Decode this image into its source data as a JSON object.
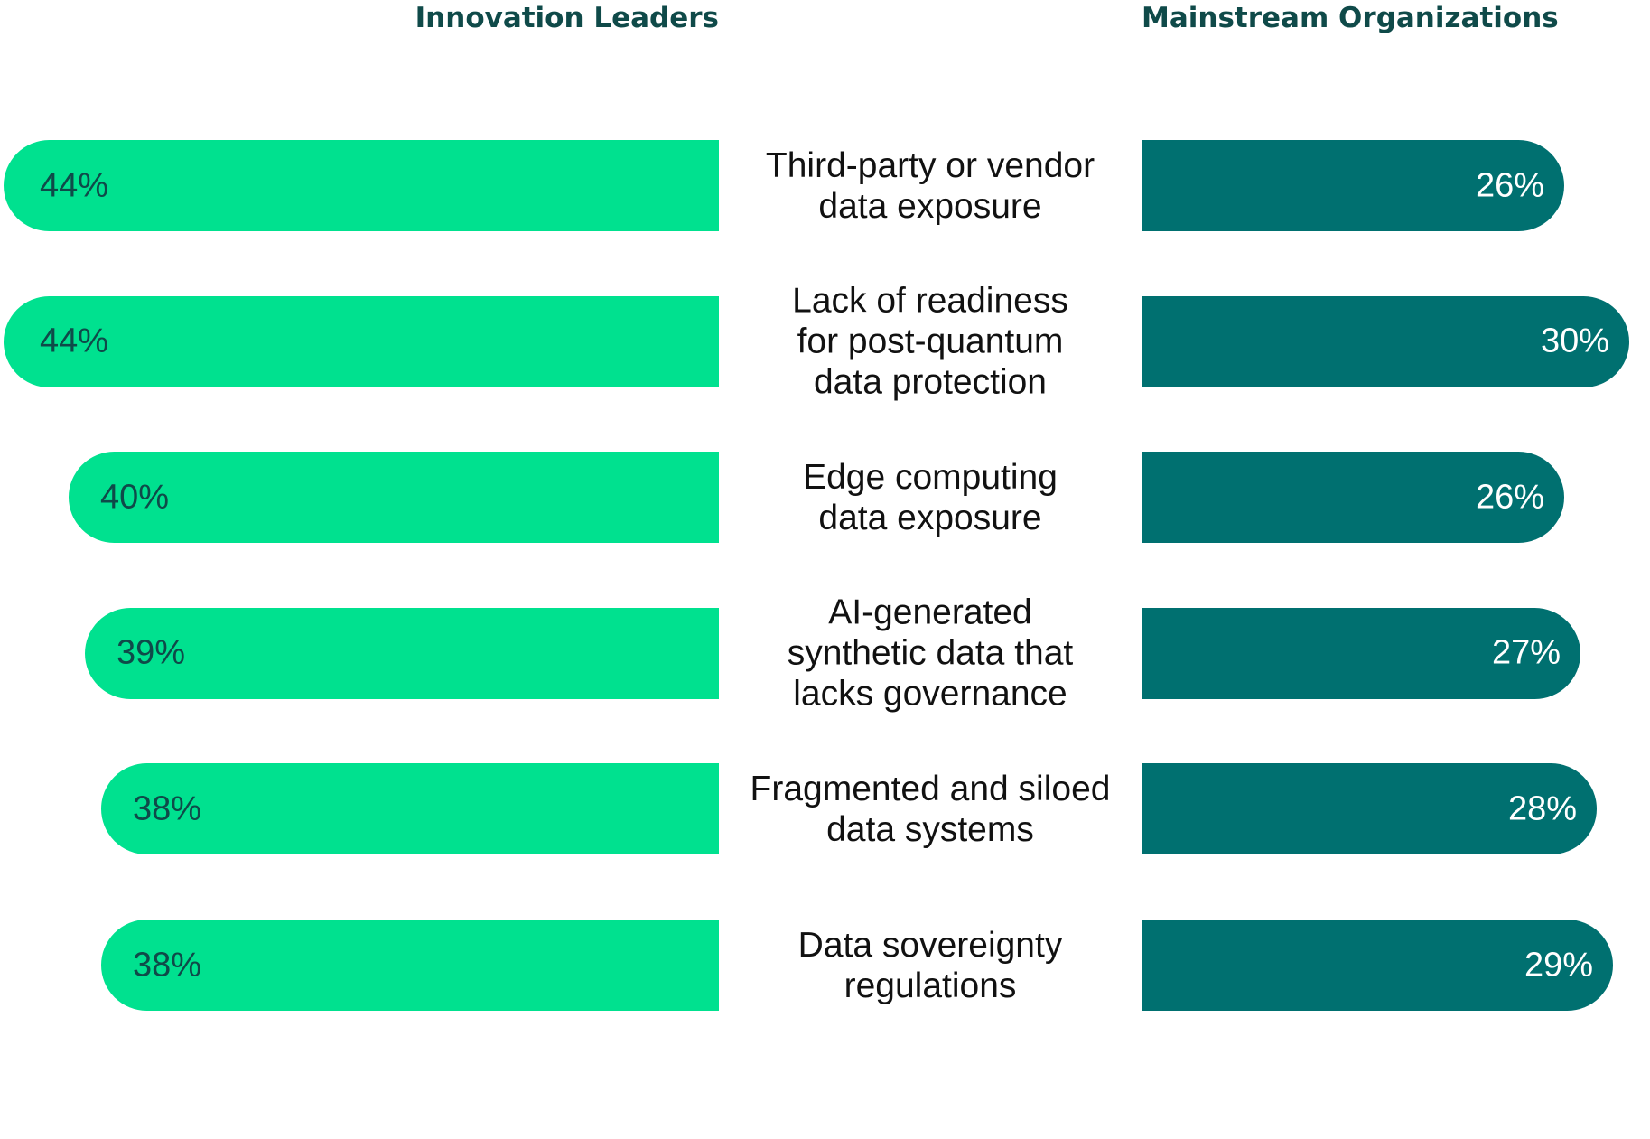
{
  "chart_data": {
    "type": "bar",
    "orientation": "horizontal-diverging",
    "categories": [
      "Third-party or vendor\ndata exposure",
      "Lack of readiness\nfor post-quantum\ndata protection",
      "Edge computing\ndata exposure",
      "AI-generated\nsynthetic data that\nlacks governance",
      "Fragmented and siloed\ndata systems",
      "Data sovereignty\nregulations"
    ],
    "series": [
      {
        "name": "Innovation Leaders",
        "values": [
          44,
          44,
          40,
          39,
          38,
          38
        ],
        "labels": [
          "44%",
          "44%",
          "40%",
          "39%",
          "38%",
          "38%"
        ],
        "color": "#00e18f"
      },
      {
        "name": "Mainstream Organizations",
        "values": [
          26,
          30,
          26,
          27,
          28,
          29
        ],
        "labels": [
          "26%",
          "30%",
          "26%",
          "27%",
          "28%",
          "29%"
        ],
        "color": "#007070"
      }
    ],
    "unit": "%",
    "xlim": [
      0,
      44
    ],
    "grid": false,
    "legend": "column headers above each side"
  },
  "colors": {
    "header_text": "#0f4a49",
    "leader_bar": "#00e18f",
    "mainstream_bar": "#007070"
  }
}
